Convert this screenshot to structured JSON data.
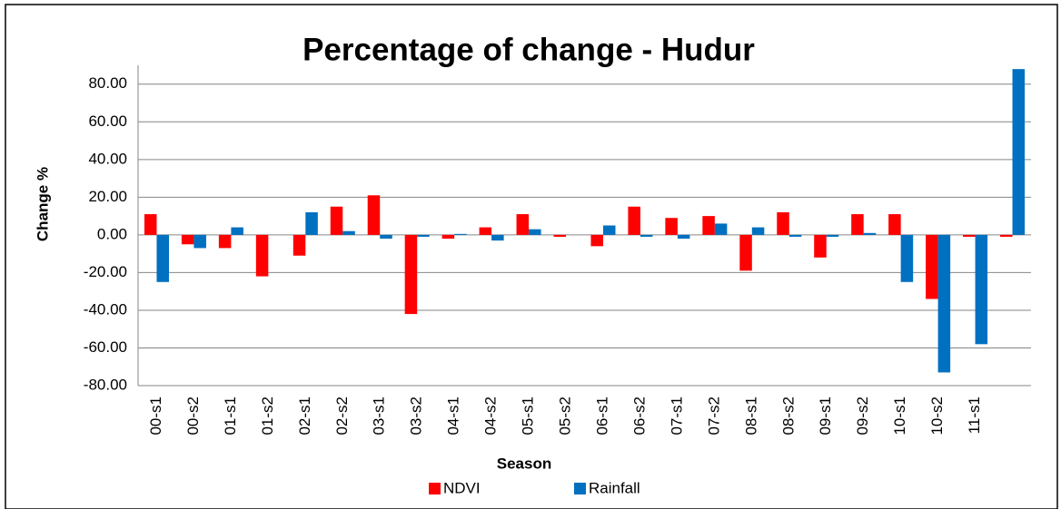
{
  "chart_data": {
    "type": "bar",
    "title": "Percentage of change   - Hudur",
    "x_label": "Season",
    "y_label": "Change %",
    "categories": [
      "00-s1",
      "00-s2",
      "01-s1",
      "01-s2",
      "02-s1",
      "02-s2",
      "03-s1",
      "03-s2",
      "04-s1",
      "04-s2",
      "05-s1",
      "05-s2",
      "06-s1",
      "06-s2",
      "07-s1",
      "07-s2",
      "08-s1",
      "08-s2",
      "09-s1",
      "09-s2",
      "10-s1",
      "10-s2",
      "11-s1",
      null
    ],
    "series": [
      {
        "name": "NDVI",
        "color": "#ff0000",
        "values": [
          11,
          -5,
          -7,
          -22,
          -11,
          15,
          21,
          -42,
          -2,
          4,
          11,
          -1,
          -6,
          15,
          9,
          10,
          -19,
          12,
          -12,
          11,
          11,
          -34,
          -1,
          -1
        ]
      },
      {
        "name": "Rainfall",
        "color": "#0070c0",
        "values": [
          -25,
          -7,
          4,
          0,
          12,
          2,
          -2,
          -1,
          0.5,
          -3,
          3,
          0,
          5,
          -1,
          -2,
          6,
          4,
          -1,
          -1,
          1,
          -25,
          -73,
          -58,
          88
        ]
      }
    ],
    "ylim": [
      -80,
      90
    ],
    "yticks": [
      {
        "value": -80,
        "label": "-80.00"
      },
      {
        "value": -60,
        "label": "-60.00"
      },
      {
        "value": -40,
        "label": "-40.00"
      },
      {
        "value": -20,
        "label": "-20.00"
      },
      {
        "value": 0,
        "label": "0.00"
      },
      {
        "value": 20,
        "label": "20.00"
      },
      {
        "value": 40,
        "label": "40.00"
      },
      {
        "value": 60,
        "label": "60.00"
      },
      {
        "value": 80,
        "label": "80.00"
      }
    ],
    "grid": true,
    "legend": "bottom"
  }
}
